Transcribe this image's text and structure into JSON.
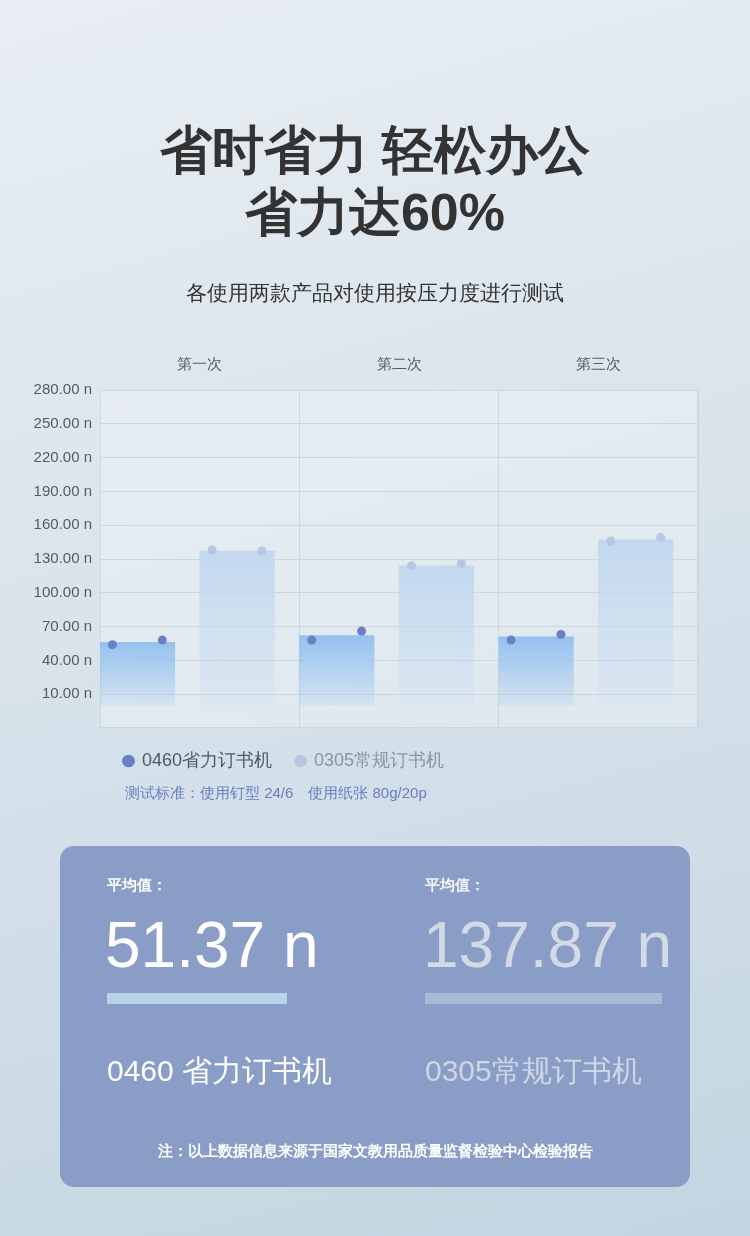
{
  "chart_data": [
    {
      "type": "bar",
      "title": "省时省力 轻松办公省力达60%",
      "subtitle": "各使用两款产品对使用按压力度进行测试",
      "categories": [
        "第一次",
        "第二次",
        "第三次"
      ],
      "ylim": [
        -20,
        280
      ],
      "yticks": [
        {
          "value": 10,
          "label": "10.00 n"
        },
        {
          "value": 40,
          "label": "40.00 n"
        },
        {
          "value": 70,
          "label": "70.00 n"
        },
        {
          "value": 100,
          "label": "100.00 n"
        },
        {
          "value": 130,
          "label": "130.00 n"
        },
        {
          "value": 160,
          "label": "160.00 n"
        },
        {
          "value": 190,
          "label": "190.00 n"
        },
        {
          "value": 220,
          "label": "220.00 n"
        },
        {
          "value": 250,
          "label": "250.00 n"
        },
        {
          "value": 280,
          "label": "280.00 n"
        }
      ],
      "series": [
        {
          "color": "#94c1ef",
          "values": [
            56,
            62,
            61
          ]
        },
        {
          "color": "#c3d8ef",
          "values": [
            137,
            124,
            147
          ]
        },
        {
          "type": "scatter",
          "name": "0460省力订书机",
          "color": "#6b7ec6",
          "x": [
            "第一次",
            "第一次",
            "第二次",
            "第二次",
            "第三次",
            "第三次"
          ],
          "values": [
            54,
            58,
            58,
            66,
            58,
            63
          ]
        },
        {
          "type": "scatter",
          "name": "0305常规订书机",
          "color": "#b5c7e3",
          "x": [
            "第一次",
            "第一次",
            "第二次",
            "第二次",
            "第三次",
            "第三次"
          ],
          "values": [
            138,
            137,
            124,
            126,
            146,
            149
          ]
        }
      ],
      "marker": "circle",
      "grid": true,
      "legend": "bottom left",
      "annotations": [
        "测试标准：使用钉型 24/6　使用纸张 80g/20p"
      ]
    },
    {
      "type": "other",
      "annotations": [
        "平均值：",
        "51.37 n",
        "0460 省力订书机",
        "平均值：",
        "137.87 n",
        "0305常规订书机",
        "注：以上数据信息来源于国家文教用品质量监督检验中心检验报告"
      ]
    }
  ]
}
